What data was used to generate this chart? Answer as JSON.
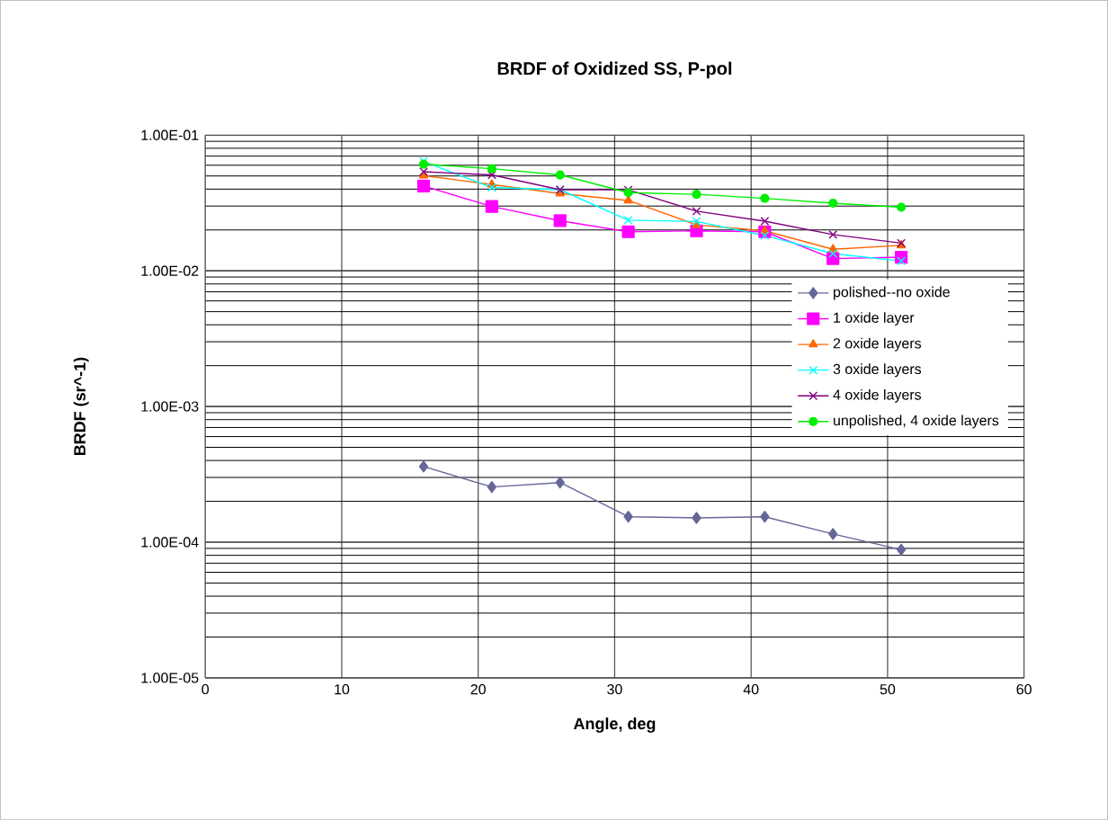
{
  "chart_data": {
    "type": "line",
    "title": "BRDF of Oxidized SS, P-pol",
    "xlabel": "Angle, deg",
    "ylabel": "BRDF (sr^-1)",
    "x": [
      16,
      21,
      26,
      31,
      36,
      41,
      46,
      51
    ],
    "series": [
      {
        "name": "polished--no oxide",
        "color": "#666699",
        "marker": "diamond",
        "values": [
          0.000361,
          0.000255,
          0.000275,
          0.000154,
          0.000151,
          0.000154,
          0.000115,
          8.8e-05
        ]
      },
      {
        "name": "1 oxide layer",
        "color": "#ff00ff",
        "marker": "square",
        "values": [
          0.0422,
          0.0298,
          0.0234,
          0.0194,
          0.0197,
          0.0194,
          0.0123,
          0.0126
        ]
      },
      {
        "name": "2 oxide layers",
        "color": "#ff6600",
        "marker": "triangle",
        "values": [
          0.0504,
          0.0432,
          0.0371,
          0.033,
          0.0218,
          0.0197,
          0.0144,
          0.0154
        ]
      },
      {
        "name": "3 oxide layers",
        "color": "#00ffff",
        "marker": "cross",
        "values": [
          0.064,
          0.0411,
          0.0396,
          0.0236,
          0.0231,
          0.0182,
          0.0134,
          0.0118
        ]
      },
      {
        "name": "4 oxide layers",
        "color": "#800080",
        "marker": "cross",
        "values": [
          0.0537,
          0.0509,
          0.0396,
          0.0395,
          0.0275,
          0.0232,
          0.0185,
          0.016
        ]
      },
      {
        "name": "unpolished, 4 oxide layers",
        "color": "#00ee00",
        "marker": "circle",
        "values": [
          0.0611,
          0.0566,
          0.0509,
          0.0377,
          0.0366,
          0.0342,
          0.0315,
          0.0294
        ]
      }
    ],
    "xlim": [
      0,
      60
    ],
    "xticks": [
      0,
      10,
      20,
      30,
      40,
      50,
      60
    ],
    "ylim": [
      1e-05,
      0.1
    ],
    "yticks": [
      {
        "value": 1e-05,
        "label": "1.00E-05"
      },
      {
        "value": 0.0001,
        "label": "1.00E-04"
      },
      {
        "value": 0.001,
        "label": "1.00E-03"
      },
      {
        "value": 0.01,
        "label": "1.00E-02"
      },
      {
        "value": 0.1,
        "label": "1.00E-01"
      }
    ],
    "log": "y",
    "grid": true,
    "legend": "right",
    "line_style": "solid"
  }
}
